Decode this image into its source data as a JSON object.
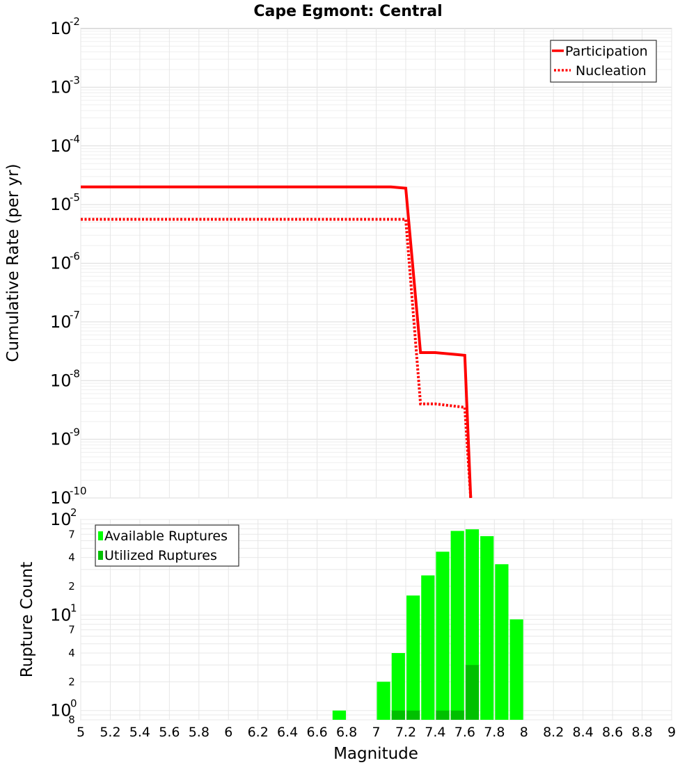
{
  "chart_data": [
    {
      "type": "line",
      "title": "Cape Egmont: Central",
      "ylabel": "Cumulative Rate (per yr)",
      "yscale": "log",
      "ylim": [
        1e-10,
        0.01
      ],
      "xlim": [
        5,
        9
      ],
      "grid": true,
      "legend_position": "top-right",
      "y_tick_labels": [
        {
          "base": "10",
          "exp": "-2"
        },
        {
          "base": "10",
          "exp": "-3"
        },
        {
          "base": "10",
          "exp": "-4"
        },
        {
          "base": "10",
          "exp": "-5"
        },
        {
          "base": "10",
          "exp": "-6"
        },
        {
          "base": "10",
          "exp": "-7"
        },
        {
          "base": "10",
          "exp": "-8"
        },
        {
          "base": "10",
          "exp": "-9"
        },
        {
          "base": "10",
          "exp": "-10"
        }
      ],
      "series": [
        {
          "name": "Participation",
          "style": "solid",
          "color": "#ff0000",
          "x": [
            5.0,
            7.1,
            7.2,
            7.3,
            7.4,
            7.6,
            7.64
          ],
          "y": [
            2e-05,
            2e-05,
            1.9e-05,
            3e-08,
            3e-08,
            2.7e-08,
            1e-10
          ]
        },
        {
          "name": "Nucleation",
          "style": "dotted",
          "color": "#ff0000",
          "x": [
            5.0,
            7.2,
            7.3,
            7.4,
            7.6,
            7.64
          ],
          "y": [
            5.6e-06,
            5.6e-06,
            4e-09,
            4e-09,
            3.5e-09,
            1e-10
          ]
        }
      ]
    },
    {
      "type": "bar",
      "xlabel": "Magnitude",
      "ylabel": "Rupture Count",
      "yscale": "log",
      "ylim": [
        0.8,
        100
      ],
      "xlim": [
        5,
        9
      ],
      "grid": true,
      "legend_position": "top-left",
      "x_ticks": [
        "5",
        "5.2",
        "5.4",
        "5.6",
        "5.8",
        "6",
        "6.2",
        "6.4",
        "6.6",
        "6.8",
        "7",
        "7.2",
        "7.4",
        "7.6",
        "7.8",
        "8",
        "8.2",
        "8.4",
        "8.6",
        "8.8",
        "9"
      ],
      "y_major_labels": [
        {
          "base": "10",
          "exp": "2",
          "value": 100
        },
        {
          "base": "10",
          "exp": "1",
          "value": 10
        },
        {
          "base": "10",
          "exp": "0",
          "value": 1
        }
      ],
      "y_minor_labels": [
        {
          "label": "7",
          "value": 70
        },
        {
          "label": "4",
          "value": 40
        },
        {
          "label": "2",
          "value": 20
        },
        {
          "label": "7",
          "value": 7
        },
        {
          "label": "4",
          "value": 4
        },
        {
          "label": "2",
          "value": 2
        },
        {
          "label": "8",
          "value": 0.8
        }
      ],
      "bin_width": 0.1,
      "series": [
        {
          "name": "Available Ruptures",
          "color": "#00ff00",
          "x": [
            6.75,
            7.05,
            7.15,
            7.25,
            7.35,
            7.45,
            7.55,
            7.65,
            7.75,
            7.85,
            7.95
          ],
          "values": [
            1,
            2,
            4,
            16,
            26,
            46,
            76,
            79,
            67,
            34,
            9
          ]
        },
        {
          "name": "Utilized Ruptures",
          "color": "#00c000",
          "x": [
            7.15,
            7.25,
            7.45,
            7.55,
            7.65
          ],
          "values": [
            1,
            1,
            1,
            1,
            3
          ]
        }
      ]
    }
  ]
}
